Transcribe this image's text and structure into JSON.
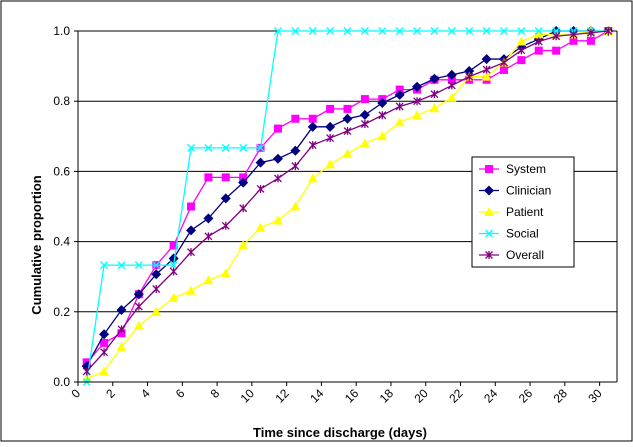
{
  "chart_data": {
    "type": "line",
    "title": "",
    "xlabel": "Time since discharge (days)",
    "ylabel": "Cumulative proportion",
    "xlim": [
      0,
      31
    ],
    "ylim": [
      0,
      1.0
    ],
    "x_ticks": [
      0,
      2,
      4,
      6,
      8,
      10,
      12,
      14,
      16,
      18,
      20,
      22,
      24,
      26,
      28,
      30
    ],
    "x_tick_labels": [
      "0",
      "2",
      "4",
      "6",
      "8",
      "10",
      "12",
      "14",
      "16",
      "18",
      "20",
      "22",
      "24",
      "26",
      "28",
      "30"
    ],
    "y_ticks": [
      0,
      0.2,
      0.4,
      0.6,
      0.8,
      1.0
    ],
    "y_tick_labels": [
      "0.0",
      "0.2",
      "0.4",
      "0.6",
      "0.8",
      "1.0"
    ],
    "grid": "horizontal",
    "legend_position": "right",
    "x": [
      0.5,
      1.5,
      2.5,
      3.5,
      4.5,
      5.5,
      6.5,
      7.5,
      8.5,
      9.5,
      10.5,
      11.5,
      12.5,
      13.5,
      14.5,
      15.5,
      16.5,
      17.5,
      18.5,
      19.5,
      20.5,
      21.5,
      22.5,
      23.5,
      24.5,
      25.5,
      26.5,
      27.5,
      28.5,
      29.5,
      30.5
    ],
    "series": [
      {
        "name": "System",
        "color": "#ff00ff",
        "marker": "square",
        "values": [
          0.056,
          0.111,
          0.139,
          0.25,
          0.333,
          0.389,
          0.5,
          0.583,
          0.583,
          0.583,
          0.667,
          0.722,
          0.75,
          0.75,
          0.778,
          0.778,
          0.806,
          0.806,
          0.833,
          0.833,
          0.861,
          0.861,
          0.861,
          0.861,
          0.889,
          0.917,
          0.944,
          0.944,
          0.972,
          0.972,
          1.0
        ]
      },
      {
        "name": "Clinician",
        "color": "#000080",
        "marker": "diamond",
        "values": [
          0.045,
          0.136,
          0.205,
          0.25,
          0.307,
          0.352,
          0.432,
          0.466,
          0.523,
          0.568,
          0.625,
          0.636,
          0.659,
          0.727,
          0.727,
          0.75,
          0.761,
          0.795,
          0.818,
          0.841,
          0.864,
          0.875,
          0.886,
          0.92,
          0.92,
          0.955,
          0.977,
          1.0,
          1.0,
          1.0,
          1.0
        ]
      },
      {
        "name": "Patient",
        "color": "#ffff00",
        "marker": "triangle",
        "values": [
          0.01,
          0.03,
          0.1,
          0.16,
          0.2,
          0.24,
          0.26,
          0.29,
          0.31,
          0.39,
          0.44,
          0.46,
          0.5,
          0.58,
          0.62,
          0.65,
          0.68,
          0.7,
          0.74,
          0.76,
          0.78,
          0.81,
          0.87,
          0.87,
          0.91,
          0.97,
          0.99,
          0.99,
          0.99,
          1.0,
          1.0
        ]
      },
      {
        "name": "Social",
        "color": "#00ffff",
        "marker": "x",
        "values": [
          0.0,
          0.333,
          0.333,
          0.333,
          0.333,
          0.333,
          0.667,
          0.667,
          0.667,
          0.667,
          0.667,
          1.0,
          1.0,
          1.0,
          1.0,
          1.0,
          1.0,
          1.0,
          1.0,
          1.0,
          1.0,
          1.0,
          1.0,
          1.0,
          1.0,
          1.0,
          1.0,
          1.0,
          1.0,
          1.0,
          1.0
        ]
      },
      {
        "name": "Overall",
        "color": "#800080",
        "marker": "star",
        "values": [
          0.03,
          0.085,
          0.15,
          0.215,
          0.265,
          0.315,
          0.37,
          0.415,
          0.445,
          0.495,
          0.55,
          0.58,
          0.615,
          0.675,
          0.695,
          0.715,
          0.735,
          0.76,
          0.785,
          0.8,
          0.82,
          0.845,
          0.87,
          0.89,
          0.91,
          0.945,
          0.97,
          0.985,
          0.99,
          0.995,
          1.0
        ]
      }
    ]
  }
}
